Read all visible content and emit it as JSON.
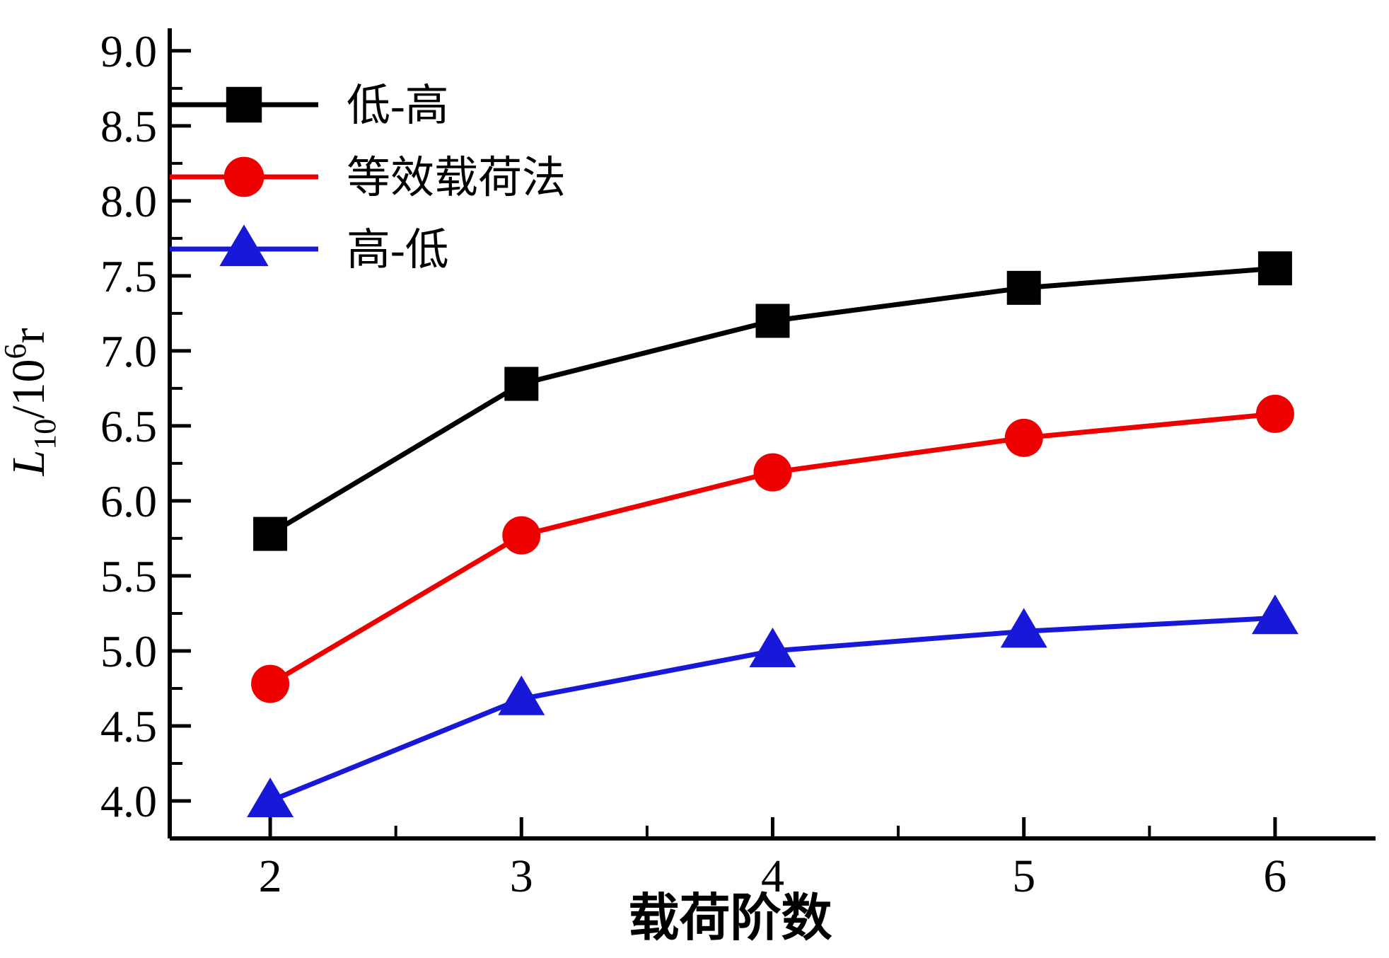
{
  "chart_data": {
    "type": "line",
    "title": "",
    "xlabel": "载荷阶数",
    "ylabel": "L10/10^6 r",
    "ylabel_parts": {
      "main": "L",
      "sub": "10",
      "mid": "/10",
      "sup": "6",
      "unit": "r"
    },
    "x": [
      2,
      3,
      4,
      5,
      6
    ],
    "series": [
      {
        "name": "低-高",
        "color": "#000000",
        "marker": "square",
        "values": [
          5.78,
          6.78,
          7.2,
          7.42,
          7.55
        ]
      },
      {
        "name": "等效载荷法",
        "color": "#ee0000",
        "marker": "circle",
        "values": [
          4.78,
          5.77,
          6.19,
          6.42,
          6.58
        ]
      },
      {
        "name": "高-低",
        "color": "#1818d8",
        "marker": "triangle",
        "values": [
          4.0,
          4.68,
          5.0,
          5.13,
          5.22
        ]
      }
    ],
    "xlim": [
      1.6,
      6.4
    ],
    "ylim": [
      3.75,
      9.15
    ],
    "xticks_major": [
      2,
      3,
      4,
      5,
      6
    ],
    "xtick_labels": [
      "2",
      "3",
      "4",
      "5",
      "6"
    ],
    "xticks_minor": [
      2.5,
      3.5,
      4.5,
      5.5
    ],
    "yticks_major": [
      4.0,
      4.5,
      5.0,
      5.5,
      6.0,
      6.5,
      7.0,
      7.5,
      8.0,
      8.5,
      9.0
    ],
    "ytick_labels": [
      "4.0",
      "4.5",
      "5.0",
      "5.5",
      "6.0",
      "6.5",
      "7.0",
      "7.5",
      "8.0",
      "8.5",
      "9.0"
    ],
    "yticks_minor": [
      3.75,
      4.25,
      4.75,
      5.25,
      5.75,
      6.25,
      6.75,
      7.25,
      7.75,
      8.25,
      8.75
    ],
    "legend_position": "top-left",
    "grid": false
  },
  "colors": {
    "background": "#ffffff",
    "axis": "#000000"
  }
}
